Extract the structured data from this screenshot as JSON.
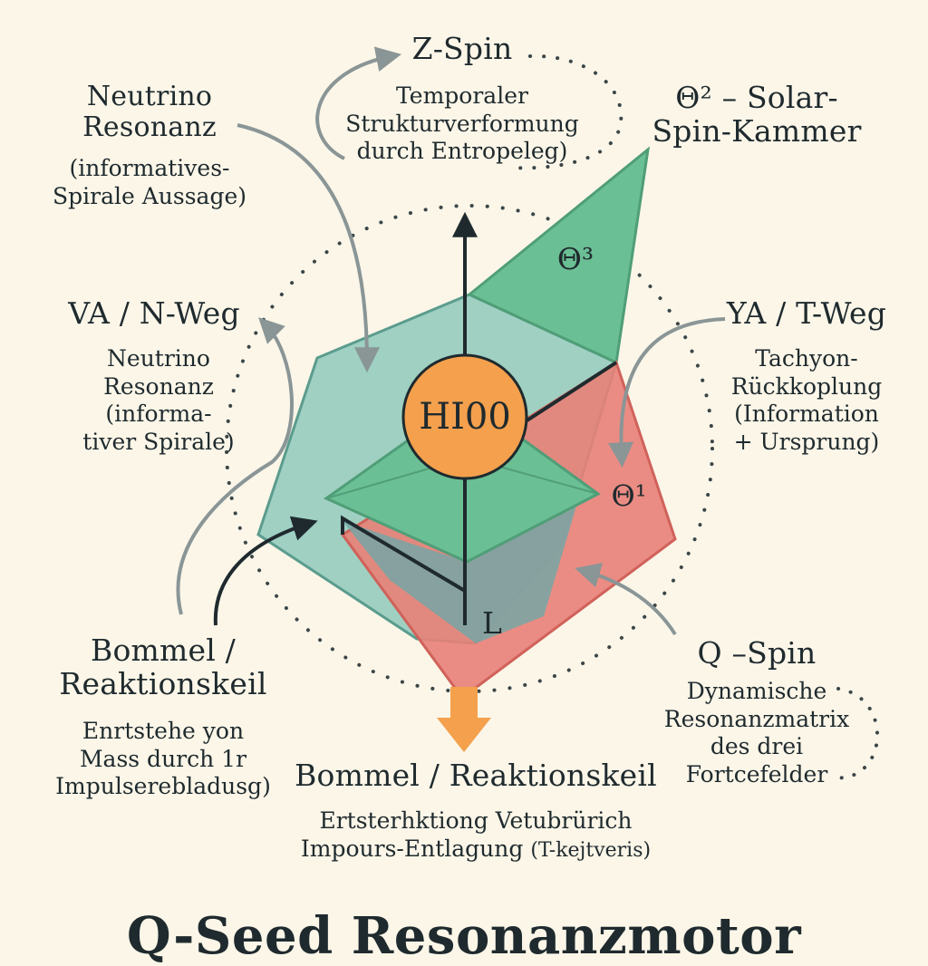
{
  "diagram": {
    "center_node": "HI00",
    "facet_labels": {
      "theta3": "Θ³",
      "theta1": "Θ¹",
      "l": "L"
    },
    "labels": {
      "z_spin": {
        "title": "Z-Spin",
        "desc": [
          "Temporaler",
          "Strukturverformung",
          "durch Entropeleg)"
        ]
      },
      "theta2": {
        "title": [
          "Θ² – Solar-",
          "Spin-Kammer"
        ]
      },
      "neutrino_top": {
        "title": [
          "Neutrino",
          "Resonanz"
        ],
        "desc": [
          "(informatives-",
          "Spirale Aussage)"
        ]
      },
      "va": {
        "title": "VA / N-Weg",
        "desc": [
          "Neutrino",
          "Resonanz",
          "(informa-",
          "tiver Spirale)"
        ]
      },
      "ya": {
        "title": "YA / T-Weg",
        "desc": [
          "Tachyon-",
          "Rückkoplung",
          "(Information",
          "+ Ursprung)"
        ]
      },
      "bommel_left": {
        "title": [
          "Bommel /",
          "Reaktionskeil"
        ],
        "desc": [
          "Enrtstehe yon",
          "Mass durch 1r",
          "Impulserebladusg)"
        ]
      },
      "q_spin": {
        "title": "Q –Spin",
        "desc": [
          "Dynamische",
          "Resonanzmatrix",
          "des drei",
          "Fortcefelder"
        ]
      },
      "bommel_bottom": {
        "title": "Bommel / Reaktionskeil",
        "desc": [
          "Ertsterhktiong Vetubrürich",
          "Impours-Entlagung"
        ],
        "desc_small": "(T-kejtveris)"
      }
    },
    "page_title": "Q-Seed Resonanzmotor"
  },
  "colors": {
    "background": "#fbf6e8",
    "teal": "#8ec9bb",
    "green": "#6bbf94",
    "red": "#e88178",
    "orange": "#f4a04d",
    "ink": "#1f2a2e",
    "arrow_gray": "#8a9596"
  }
}
